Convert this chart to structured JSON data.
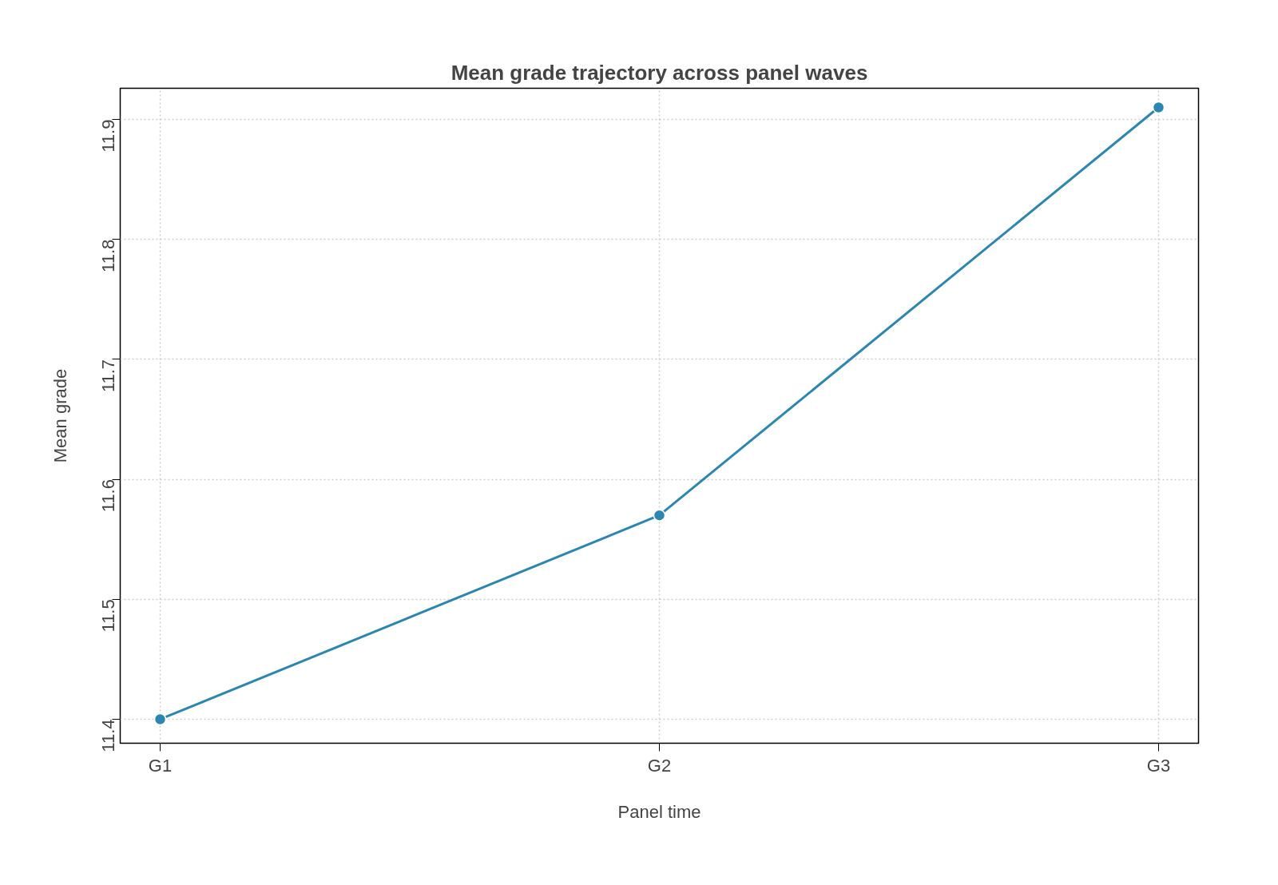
{
  "chart_data": {
    "type": "line",
    "title": "Mean grade trajectory across panel waves",
    "xlabel": "Panel time",
    "ylabel": "Mean grade",
    "categories": [
      "G1",
      "G2",
      "G3"
    ],
    "series": [
      {
        "color": "#2b87b0",
        "values": [
          11.4,
          11.57,
          11.91
        ]
      }
    ],
    "ylim": [
      11.38,
      11.926
    ],
    "yticks": [
      11.4,
      11.5,
      11.6,
      11.7,
      11.8,
      11.9
    ],
    "grid": true,
    "marker": "circle",
    "line_style": "solid"
  }
}
